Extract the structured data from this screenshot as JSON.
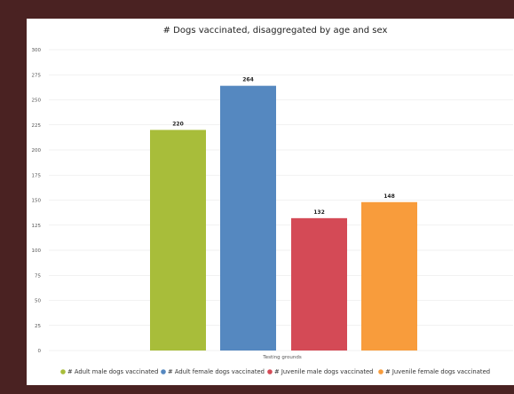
{
  "chart_data": {
    "type": "bar",
    "title": "# Dogs vaccinated, disaggregated by age and sex",
    "xlabel": "Testing grounds",
    "ylabel": "",
    "ylim": [
      0,
      300
    ],
    "yticks": [
      0,
      25,
      50,
      75,
      100,
      125,
      150,
      175,
      200,
      225,
      250,
      275,
      300
    ],
    "grid": true,
    "legend_position": "bottom",
    "categories": [
      "Testing grounds"
    ],
    "series": [
      {
        "name": "# Adult male dogs vaccinated",
        "values": [
          220
        ],
        "color": "#a8bd3a"
      },
      {
        "name": "# Adult female dogs vaccinated",
        "values": [
          264
        ],
        "color": "#5588c0"
      },
      {
        "name": "# Juvenile male dogs vaccinated",
        "values": [
          132
        ],
        "color": "#d44a56"
      },
      {
        "name": "# Juvenile female dogs vaccinated",
        "values": [
          148
        ],
        "color": "#f89c3c"
      }
    ]
  }
}
